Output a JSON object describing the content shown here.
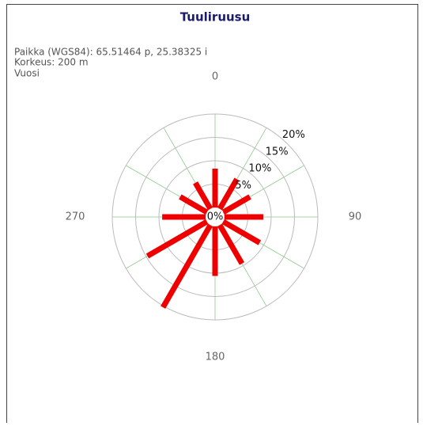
{
  "chart_data": {
    "type": "windrose",
    "title": "Tuuliruusu",
    "info": [
      "Paikka (WGS84): 65.51464 p, 25.38325 i",
      "Korkeus: 200 m",
      "Vuosi"
    ],
    "x": [
      0,
      30,
      60,
      90,
      120,
      150,
      180,
      210,
      240,
      270,
      300,
      330
    ],
    "values": [
      8.3,
      7.3,
      6.6,
      8.3,
      9,
      9.5,
      10.6,
      20.3,
      14.7,
      9.3,
      6.6,
      6.4
    ],
    "color": "#ee0000",
    "xlim": [
      0,
      360
    ],
    "xticks": [
      0,
      90,
      180,
      270
    ],
    "ylim": [
      0,
      20
    ],
    "yticks": [
      {
        "value": 0,
        "label": "0%"
      },
      {
        "value": 5,
        "label": "5%"
      },
      {
        "value": 10,
        "label": "10%"
      },
      {
        "value": 15,
        "label": "15%"
      },
      {
        "value": 20,
        "label": "20%"
      }
    ],
    "grid": true
  }
}
